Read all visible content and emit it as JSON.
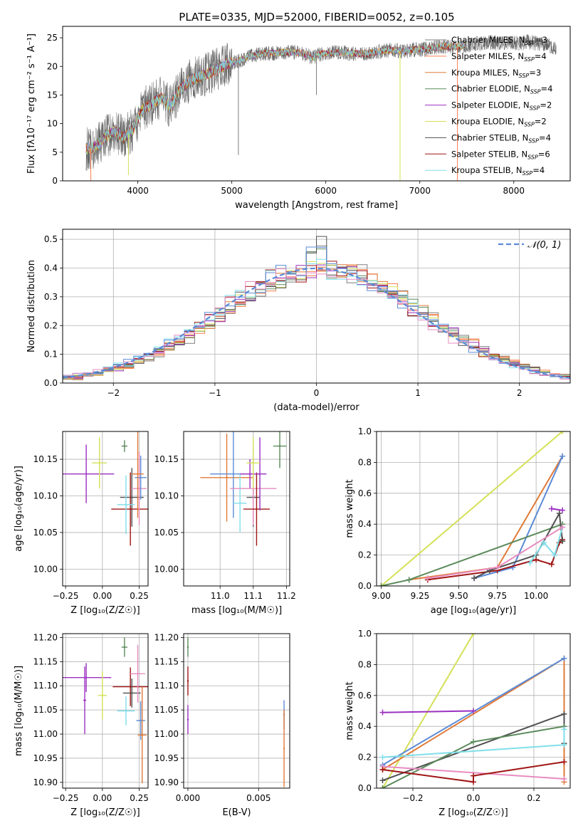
{
  "figure": {
    "title": "PLATE=0335, MJD=52000, FIBERID=0052, z=0.105"
  },
  "colors": {
    "chabrier_miles": "#7f7f7f",
    "salpeter_miles": "#ff7f50",
    "kroupa_miles": "#e07b39",
    "chabrier_elodie": "#5a8a5a",
    "salpeter_elodie": "#9b30c0",
    "kroupa_elodie": "#d4e157",
    "chabrier_stelib": "#505050",
    "salpeter_stelib": "#a01515",
    "kroupa_stelib": "#80deea",
    "blue_extra": "#5b8bd6",
    "pink_extra": "#e88cc0",
    "normal_curve": "#5b8bd6"
  },
  "chart_data": [
    {
      "id": "spectrum",
      "type": "line",
      "title": "PLATE=0335, MJD=52000, FIBERID=0052, z=0.105",
      "xlabel": "wavelength [Angstrom, rest frame]",
      "ylabel": "Flux [fλ10⁻¹⁷ erg cm⁻² s⁻¹ A⁻¹]",
      "xlim": [
        3200,
        8600
      ],
      "ylim": [
        0,
        27
      ],
      "xticks": [
        4000,
        5000,
        6000,
        7000,
        8000
      ],
      "yticks": [
        0,
        5,
        10,
        15,
        20,
        25
      ],
      "legend_position": "top-right",
      "legend": [
        {
          "label": "Chabrier MILES, N",
          "sub": "SSP",
          "tail": "=3",
          "color_key": "chabrier_miles"
        },
        {
          "label": "Salpeter MILES, N",
          "sub": "SSP",
          "tail": "=4",
          "color_key": "salpeter_miles"
        },
        {
          "label": "Kroupa MILES, N",
          "sub": "SSP",
          "tail": "=3",
          "color_key": "kroupa_miles"
        },
        {
          "label": "Chabrier ELODIE, N",
          "sub": "SSP",
          "tail": "=4",
          "color_key": "chabrier_elodie"
        },
        {
          "label": "Salpeter ELODIE, N",
          "sub": "SSP",
          "tail": "=2",
          "color_key": "salpeter_elodie"
        },
        {
          "label": "Kroupa ELODIE, N",
          "sub": "SSP",
          "tail": "=2",
          "color_key": "kroupa_elodie"
        },
        {
          "label": "Chabrier STELIB, N",
          "sub": "SSP",
          "tail": "=4",
          "color_key": "chabrier_stelib"
        },
        {
          "label": "Salpeter STELIB, N",
          "sub": "SSP",
          "tail": "=6",
          "color_key": "salpeter_stelib"
        },
        {
          "label": "Kroupa STELIB, N",
          "sub": "SSP",
          "tail": "=4",
          "color_key": "kroupa_stelib"
        }
      ],
      "continuum": [
        [
          3450,
          5.5
        ],
        [
          3550,
          6.0
        ],
        [
          3650,
          7.5
        ],
        [
          3750,
          8.8
        ],
        [
          3850,
          7.5
        ],
        [
          3950,
          9.0
        ],
        [
          4050,
          12.5
        ],
        [
          4150,
          13.5
        ],
        [
          4250,
          14.5
        ],
        [
          4350,
          13.0
        ],
        [
          4450,
          16.0
        ],
        [
          4550,
          17.5
        ],
        [
          4650,
          18.2
        ],
        [
          4750,
          18.8
        ],
        [
          4850,
          19.5
        ],
        [
          4950,
          20.5
        ],
        [
          5050,
          20.8
        ],
        [
          5150,
          21.5
        ],
        [
          5250,
          22.0
        ],
        [
          5350,
          22.3
        ],
        [
          5450,
          22.3
        ],
        [
          5550,
          22.5
        ],
        [
          5650,
          22.5
        ],
        [
          5750,
          22.3
        ],
        [
          5850,
          21.5
        ],
        [
          5950,
          22.2
        ],
        [
          6050,
          22.3
        ],
        [
          6150,
          22.5
        ],
        [
          6250,
          22.3
        ],
        [
          6350,
          22.2
        ],
        [
          6450,
          22.3
        ],
        [
          6550,
          22.6
        ],
        [
          6650,
          22.8
        ],
        [
          6750,
          22.8
        ],
        [
          6850,
          22.6
        ],
        [
          6950,
          23.0
        ],
        [
          7050,
          23.0
        ],
        [
          7150,
          23.2
        ],
        [
          7250,
          23.5
        ],
        [
          7350,
          23.4
        ],
        [
          7450,
          23.6
        ],
        [
          7550,
          23.8
        ],
        [
          7650,
          24.0
        ],
        [
          7750,
          24.2
        ],
        [
          7850,
          24.0
        ],
        [
          7950,
          24.1
        ],
        [
          8050,
          24.0
        ],
        [
          8150,
          24.3
        ],
        [
          8250,
          24.0
        ],
        [
          8350,
          23.8
        ],
        [
          8450,
          23.2
        ]
      ],
      "spikes": [
        {
          "x": 3500,
          "low": 0,
          "color_key": "salpeter_miles"
        },
        {
          "x": 3900,
          "low": 1,
          "color_key": "kroupa_elodie"
        },
        {
          "x": 5070,
          "low": 4.5,
          "color_key": "chabrier_miles"
        },
        {
          "x": 5900,
          "low": 15,
          "color_key": "chabrier_miles"
        },
        {
          "x": 6790,
          "low": 0,
          "color_key": "kroupa_elodie"
        },
        {
          "x": 7400,
          "low": 0,
          "color_key": "salpeter_miles"
        }
      ]
    },
    {
      "id": "residuals",
      "type": "line",
      "xlabel": "(data-model)/error",
      "ylabel": "Normed distribution",
      "xlim": [
        -2.5,
        2.5
      ],
      "ylim": [
        0,
        0.535
      ],
      "xticks": [
        -2,
        -1,
        0,
        1,
        2
      ],
      "yticks": [
        0.0,
        0.1,
        0.2,
        0.3,
        0.4,
        0.5
      ],
      "grid": true,
      "legend_position": "top-right",
      "legend_label": "𝒩(0, 1)",
      "bin_width": 0.1
    },
    {
      "id": "age_vs_Z",
      "type": "scatter",
      "xlabel": "Z [log₁₀(Z/Z☉)]",
      "ylabel": "age  [log₁₀(age/yr)]",
      "xlim": [
        -0.27,
        0.31
      ],
      "ylim": [
        9.977,
        10.188
      ],
      "xticks": [
        -0.25,
        0.0,
        0.25
      ],
      "yticks": [
        10.0,
        10.05,
        10.1,
        10.15
      ],
      "grid": true,
      "points": [
        {
          "x": -0.11,
          "y": 10.13,
          "xerr": 0.19,
          "yerr": 0.04,
          "color_key": "salpeter_elodie"
        },
        {
          "x": -0.02,
          "y": 10.145,
          "xerr": 0.05,
          "yerr": 0.035,
          "color_key": "kroupa_elodie"
        },
        {
          "x": 0.15,
          "y": 10.168,
          "xerr": 0.02,
          "yerr": 0.008,
          "color_key": "chabrier_elodie"
        },
        {
          "x": 0.2,
          "y": 10.098,
          "xerr": 0.08,
          "yerr": 0.04,
          "color_key": "chabrier_stelib"
        },
        {
          "x": 0.19,
          "y": 10.082,
          "xerr": 0.13,
          "yerr": 0.05,
          "color_key": "salpeter_stelib"
        },
        {
          "x": 0.16,
          "y": 10.088,
          "xerr": 0.06,
          "yerr": 0.04,
          "color_key": "kroupa_stelib"
        },
        {
          "x": 0.25,
          "y": 10.11,
          "xerr": 0.05,
          "yerr": 0.05,
          "color_key": "pink_extra"
        },
        {
          "x": 0.26,
          "y": 10.125,
          "xerr": 0.04,
          "yerr": 0.03,
          "color_key": "blue_extra"
        },
        {
          "x": 0.24,
          "y": 10.13,
          "xerr": 0.04,
          "yerr": 0.06,
          "color_key": "kroupa_miles"
        }
      ]
    },
    {
      "id": "age_vs_mass",
      "type": "scatter",
      "xlabel": "mass [log₁₀(M/M☉)]",
      "xlim": [
        10.89,
        11.21
      ],
      "ylim": [
        9.977,
        10.188
      ],
      "xticks": [
        11.0,
        11.1,
        11.2
      ],
      "yticks": [
        10.0,
        10.05,
        10.1,
        10.15
      ],
      "grid": true,
      "points": [
        {
          "x": 11.02,
          "y": 10.125,
          "xerr": 0.08,
          "yerr": 0.06,
          "color_key": "kroupa_miles"
        },
        {
          "x": 11.04,
          "y": 10.13,
          "xerr": 0.07,
          "yerr": 0.06,
          "color_key": "blue_extra"
        },
        {
          "x": 11.06,
          "y": 10.09,
          "xerr": 0.02,
          "yerr": 0.04,
          "color_key": "kroupa_stelib"
        },
        {
          "x": 11.09,
          "y": 10.13,
          "xerr": 0.03,
          "yerr": 0.02,
          "color_key": "salpeter_elodie"
        },
        {
          "x": 11.1,
          "y": 10.098,
          "xerr": 0.02,
          "yerr": 0.04,
          "color_key": "chabrier_stelib"
        },
        {
          "x": 11.1,
          "y": 10.11,
          "xerr": 0.07,
          "yerr": 0.05,
          "color_key": "pink_extra"
        },
        {
          "x": 11.11,
          "y": 10.082,
          "xerr": 0.04,
          "yerr": 0.05,
          "color_key": "salpeter_stelib"
        },
        {
          "x": 11.12,
          "y": 10.13,
          "xerr": 0.02,
          "yerr": 0.05,
          "color_key": "salpeter_elodie"
        },
        {
          "x": 11.18,
          "y": 10.168,
          "xerr": 0.02,
          "yerr": 0.03,
          "color_key": "chabrier_elodie"
        },
        {
          "x": 11.1,
          "y": 10.145,
          "xerr": 0.02,
          "yerr": 0.035,
          "color_key": "kroupa_elodie"
        }
      ]
    },
    {
      "id": "weight_vs_age",
      "type": "line",
      "xlabel": "age  [log₁₀(age/yr)]",
      "ylabel": "mass weight",
      "xlim": [
        8.97,
        10.22
      ],
      "ylim": [
        0,
        1.0
      ],
      "xticks": [
        9.0,
        9.25,
        9.5,
        9.75,
        10.0
      ],
      "yticks": [
        0.0,
        0.2,
        0.4,
        0.6,
        0.8,
        1.0
      ],
      "grid": true,
      "series": [
        {
          "color_key": "kroupa_elodie",
          "points": [
            [
              9.0,
              0.0
            ],
            [
              10.17,
              1.0
            ]
          ]
        },
        {
          "color_key": "kroupa_miles",
          "points": [
            [
              9.18,
              0.04
            ],
            [
              9.75,
              0.12
            ],
            [
              10.17,
              0.84
            ]
          ]
        },
        {
          "color_key": "blue_extra",
          "points": [
            [
              9.6,
              0.05
            ],
            [
              9.85,
              0.12
            ],
            [
              10.17,
              0.84
            ]
          ]
        },
        {
          "color_key": "chabrier_elodie",
          "points": [
            [
              9.0,
              0.0
            ],
            [
              9.18,
              0.04
            ],
            [
              10.17,
              0.4
            ]
          ]
        },
        {
          "color_key": "salpeter_stelib",
          "points": [
            [
              9.3,
              0.04
            ],
            [
              9.75,
              0.1
            ],
            [
              10.0,
              0.17
            ],
            [
              10.1,
              0.14
            ],
            [
              10.15,
              0.28
            ],
            [
              10.17,
              0.3
            ]
          ]
        },
        {
          "color_key": "chabrier_stelib",
          "points": [
            [
              9.6,
              0.05
            ],
            [
              9.7,
              0.1
            ],
            [
              10.0,
              0.2
            ],
            [
              10.15,
              0.47
            ],
            [
              10.17,
              0.29
            ]
          ]
        },
        {
          "color_key": "salpeter_elodie",
          "points": [
            [
              10.1,
              0.5
            ],
            [
              10.17,
              0.49
            ]
          ]
        },
        {
          "color_key": "kroupa_stelib",
          "points": [
            [
              9.96,
              0.15
            ],
            [
              10.05,
              0.28
            ],
            [
              10.12,
              0.2
            ],
            [
              10.17,
              0.38
            ]
          ]
        },
        {
          "color_key": "pink_extra",
          "points": [
            [
              9.3,
              0.05
            ],
            [
              9.75,
              0.12
            ],
            [
              10.17,
              0.38
            ]
          ]
        }
      ]
    },
    {
      "id": "mass_vs_Z",
      "type": "scatter",
      "xlabel": "Z [log₁₀(Z/Z☉)]",
      "ylabel": "mass [log₁₀(M/M☉)]",
      "xlim": [
        -0.27,
        0.31
      ],
      "ylim": [
        10.888,
        11.208
      ],
      "xticks": [
        -0.25,
        0.0,
        0.25
      ],
      "yticks": [
        10.9,
        10.95,
        11.0,
        11.05,
        11.1,
        11.15,
        11.2
      ],
      "grid": true,
      "points": [
        {
          "x": -0.11,
          "y": 11.117,
          "xerr": 0.17,
          "yerr": 0.03,
          "color_key": "salpeter_elodie"
        },
        {
          "x": -0.12,
          "y": 11.07,
          "xerr": 0.01,
          "yerr": 0.07,
          "color_key": "salpeter_elodie"
        },
        {
          "x": 0.0,
          "y": 11.08,
          "xerr": 0.03,
          "yerr": 0.05,
          "color_key": "kroupa_elodie"
        },
        {
          "x": 0.15,
          "y": 11.18,
          "xerr": 0.02,
          "yerr": 0.02,
          "color_key": "chabrier_elodie"
        },
        {
          "x": 0.19,
          "y": 11.098,
          "xerr": 0.12,
          "yerr": 0.04,
          "color_key": "salpeter_stelib"
        },
        {
          "x": 0.2,
          "y": 11.085,
          "xerr": 0.06,
          "yerr": 0.03,
          "color_key": "chabrier_stelib"
        },
        {
          "x": 0.16,
          "y": 11.048,
          "xerr": 0.06,
          "yerr": 0.03,
          "color_key": "kroupa_stelib"
        },
        {
          "x": 0.24,
          "y": 11.125,
          "xerr": 0.05,
          "yerr": 0.06,
          "color_key": "pink_extra"
        },
        {
          "x": 0.26,
          "y": 11.028,
          "xerr": 0.03,
          "yerr": 0.04,
          "color_key": "blue_extra"
        },
        {
          "x": 0.27,
          "y": 10.998,
          "xerr": 0.03,
          "yerr": 0.1,
          "color_key": "kroupa_miles"
        }
      ]
    },
    {
      "id": "mass_vs_EBV",
      "type": "scatter",
      "xlabel": "E(B-V)",
      "xlim": [
        -0.0003,
        0.0072
      ],
      "ylim": [
        10.888,
        11.208
      ],
      "xticks": [
        0.0,
        0.005
      ],
      "xtick_labels": [
        "0.000",
        "0.005"
      ],
      "yticks": [
        10.9,
        10.95,
        11.0,
        11.05,
        11.1,
        11.15,
        11.2
      ],
      "grid": true,
      "points": [
        {
          "x": 0.0,
          "y": 11.18,
          "xerr": 0.0,
          "yerr": 0.02,
          "color_key": "chabrier_elodie"
        },
        {
          "x": 0.0,
          "y": 11.11,
          "xerr": 0.0,
          "yerr": 0.03,
          "color_key": "salpeter_stelib"
        },
        {
          "x": 0.0,
          "y": 11.03,
          "xerr": 0.0,
          "yerr": 0.03,
          "color_key": "salpeter_elodie"
        },
        {
          "x": 0.0068,
          "y": 11.04,
          "xerr": 0.0,
          "yerr": 0.03,
          "color_key": "blue_extra"
        },
        {
          "x": 0.0068,
          "y": 10.97,
          "xerr": 0.0,
          "yerr": 0.08,
          "color_key": "kroupa_miles"
        }
      ]
    },
    {
      "id": "weight_vs_Z",
      "type": "line",
      "xlabel": "Z [log₁₀(Z/Z☉)]",
      "ylabel": "mass weight",
      "xlim": [
        -0.32,
        0.32
      ],
      "ylim": [
        0,
        1.0
      ],
      "xticks": [
        -0.2,
        0.0,
        0.2
      ],
      "yticks": [
        0.0,
        0.2,
        0.4,
        0.6,
        0.8,
        1.0
      ],
      "grid": true,
      "series": [
        {
          "color_key": "kroupa_elodie",
          "points": [
            [
              -0.3,
              0.0
            ],
            [
              0.0,
              1.0
            ]
          ]
        },
        {
          "color_key": "kroupa_miles",
          "points": [
            [
              -0.3,
              0.12
            ],
            [
              0.3,
              0.84
            ],
            [
              0.3,
              0.04
            ]
          ]
        },
        {
          "color_key": "blue_extra",
          "points": [
            [
              -0.3,
              0.15
            ],
            [
              0.3,
              0.84
            ]
          ]
        },
        {
          "color_key": "salpeter_elodie",
          "points": [
            [
              -0.3,
              0.49
            ],
            [
              0.0,
              0.5
            ]
          ]
        },
        {
          "color_key": "chabrier_stelib",
          "points": [
            [
              -0.3,
              0.05
            ],
            [
              0.3,
              0.48
            ],
            [
              0.3,
              0.29
            ]
          ]
        },
        {
          "color_key": "chabrier_elodie",
          "points": [
            [
              -0.3,
              0.0
            ],
            [
              0.0,
              0.3
            ],
            [
              0.3,
              0.4
            ]
          ]
        },
        {
          "color_key": "kroupa_stelib",
          "points": [
            [
              -0.3,
              0.2
            ],
            [
              0.3,
              0.28
            ],
            [
              0.3,
              0.38
            ]
          ]
        },
        {
          "color_key": "pink_extra",
          "points": [
            [
              -0.3,
              0.14
            ],
            [
              0.3,
              0.06
            ]
          ]
        },
        {
          "color_key": "salpeter_stelib",
          "points": [
            [
              -0.3,
              0.12
            ],
            [
              0.0,
              0.04
            ],
            [
              0.0,
              0.08
            ],
            [
              0.3,
              0.17
            ]
          ]
        }
      ]
    }
  ]
}
